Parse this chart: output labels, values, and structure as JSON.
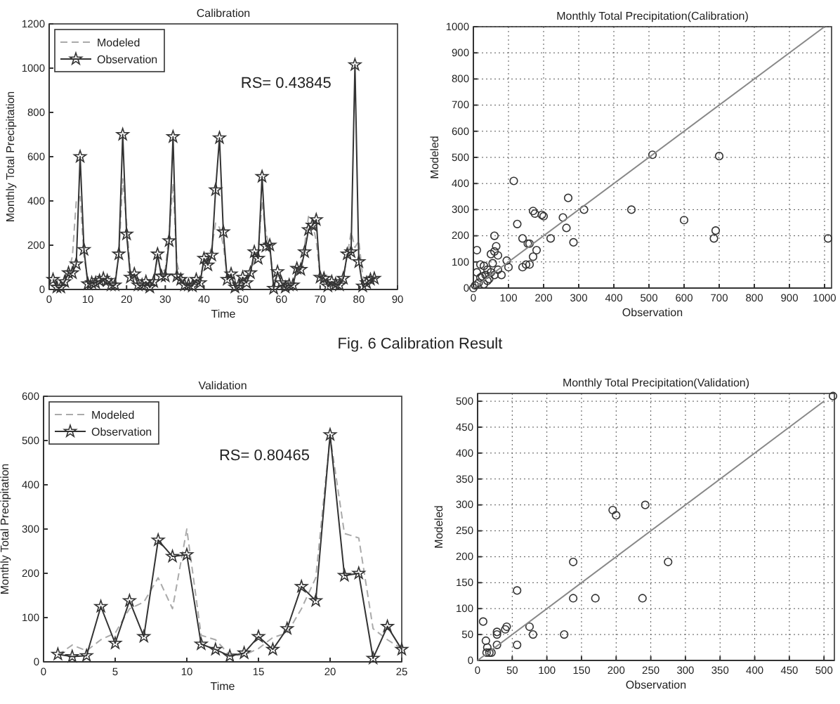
{
  "chart_data": [
    {
      "type": "line",
      "title": "Calibration",
      "xlabel": "Time",
      "ylabel": "Monthly Total Precipitation",
      "xlim": [
        0,
        90
      ],
      "ylim": [
        0,
        1200
      ],
      "xticks": [
        0,
        10,
        20,
        30,
        40,
        50,
        60,
        70,
        80,
        90
      ],
      "yticks": [
        0,
        200,
        400,
        600,
        800,
        1000,
        1200
      ],
      "legend": "top left",
      "annotations": [
        "RS= 0.43845",
        "Fig. 6 Calibration Result"
      ],
      "x": [
        1,
        2,
        3,
        4,
        5,
        6,
        7,
        8,
        9,
        10,
        11,
        12,
        13,
        14,
        15,
        16,
        17,
        18,
        19,
        20,
        21,
        22,
        23,
        24,
        25,
        26,
        27,
        28,
        29,
        30,
        31,
        32,
        33,
        34,
        35,
        36,
        37,
        38,
        39,
        40,
        41,
        42,
        43,
        44,
        45,
        46,
        47,
        48,
        49,
        50,
        51,
        52,
        53,
        54,
        55,
        56,
        57,
        58,
        59,
        60,
        61,
        62,
        63,
        64,
        65,
        66,
        67,
        68,
        69,
        70,
        71,
        72,
        73,
        74,
        75,
        76,
        77,
        78,
        79,
        80,
        81,
        82,
        83,
        84
      ],
      "series": [
        {
          "name": "Modeled",
          "color": "#aaaaaa",
          "line_style": "dashed",
          "marker": "none",
          "values": [
            50,
            30,
            20,
            40,
            80,
            150,
            400,
            420,
            150,
            40,
            30,
            30,
            40,
            45,
            40,
            30,
            40,
            150,
            500,
            300,
            80,
            50,
            30,
            25,
            30,
            20,
            40,
            140,
            80,
            90,
            250,
            480,
            120,
            50,
            30,
            25,
            25,
            40,
            60,
            120,
            150,
            190,
            300,
            280,
            200,
            60,
            50,
            20,
            30,
            50,
            60,
            80,
            130,
            170,
            400,
            260,
            180,
            40,
            60,
            40,
            20,
            20,
            30,
            80,
            100,
            200,
            330,
            300,
            220,
            60,
            50,
            30,
            30,
            30,
            25,
            60,
            150,
            260,
            190,
            220,
            60,
            30,
            40,
            60
          ]
        },
        {
          "name": "Observation",
          "color": "#333333",
          "line_style": "solid",
          "marker": "star",
          "values": [
            45,
            10,
            10,
            35,
            75,
            75,
            115,
            600,
            180,
            25,
            30,
            30,
            40,
            50,
            40,
            20,
            20,
            160,
            700,
            250,
            55,
            70,
            20,
            20,
            35,
            10,
            35,
            160,
            60,
            60,
            220,
            690,
            60,
            45,
            20,
            20,
            15,
            45,
            30,
            140,
            110,
            155,
            450,
            685,
            260,
            45,
            70,
            10,
            20,
            55,
            30,
            75,
            170,
            140,
            510,
            195,
            200,
            5,
            80,
            30,
            10,
            20,
            20,
            95,
            90,
            170,
            270,
            290,
            315,
            55,
            50,
            15,
            35,
            25,
            20,
            50,
            160,
            170,
            1015,
            125,
            15,
            30,
            45,
            50
          ]
        }
      ]
    },
    {
      "type": "scatter",
      "title": "Monthly Total Precipitation(Calibration)",
      "xlabel": "Observation",
      "ylabel": "Modeled",
      "xlim": [
        0,
        1020
      ],
      "ylim": [
        0,
        1000
      ],
      "xticks": [
        0,
        100,
        200,
        300,
        400,
        500,
        600,
        700,
        800,
        900,
        1000
      ],
      "yticks": [
        0,
        100,
        200,
        300,
        400,
        500,
        600,
        700,
        800,
        900,
        1000
      ],
      "grid": true,
      "series": [
        {
          "type": "scatter",
          "marker": "circle",
          "color": "#333333",
          "x": [
            115,
            125,
            60,
            140,
            155,
            160,
            170,
            175,
            195,
            200,
            255,
            265,
            270,
            315,
            285,
            220,
            180,
            170,
            150,
            160,
            140,
            100,
            95,
            80,
            450,
            510,
            600,
            700,
            690,
            685,
            1010,
            65,
            60,
            70,
            50,
            10,
            20,
            30,
            40,
            50,
            60,
            70,
            10,
            20,
            30,
            40,
            15,
            25,
            5,
            35,
            45,
            55,
            0
          ],
          "values": [
            410,
            245,
            200,
            190,
            170,
            170,
            295,
            285,
            280,
            275,
            270,
            230,
            345,
            300,
            175,
            190,
            145,
            120,
            90,
            90,
            80,
            80,
            105,
            50,
            300,
            510,
            260,
            505,
            220,
            190,
            190,
            160,
            140,
            125,
            130,
            145,
            90,
            85,
            70,
            60,
            50,
            70,
            60,
            40,
            15,
            28,
            20,
            45,
            10,
            50,
            35,
            95,
            0
          ]
        },
        {
          "type": "line",
          "marker": "none",
          "color": "#888888",
          "x": [
            0,
            1000
          ],
          "values": [
            0,
            1000
          ]
        }
      ]
    },
    {
      "type": "line",
      "title": "Validation",
      "xlabel": "Time",
      "ylabel": "Monthly Total Precipitation",
      "xlim": [
        0,
        25
      ],
      "ylim": [
        0,
        600
      ],
      "xticks": [
        0,
        5,
        10,
        15,
        20,
        25
      ],
      "yticks": [
        0,
        100,
        200,
        300,
        400,
        500,
        600
      ],
      "legend": "top left",
      "annotations": [
        "RS= 0.80465"
      ],
      "x": [
        1,
        2,
        3,
        4,
        5,
        6,
        7,
        8,
        9,
        10,
        11,
        12,
        13,
        14,
        15,
        16,
        17,
        18,
        19,
        20,
        21,
        22,
        23,
        24,
        25
      ],
      "series": [
        {
          "name": "Modeled",
          "color": "#aaaaaa",
          "line_style": "dashed",
          "marker": "none",
          "values": [
            15,
            38,
            25,
            50,
            65,
            120,
            135,
            190,
            120,
            300,
            60,
            50,
            15,
            15,
            30,
            55,
            65,
            120,
            190,
            510,
            290,
            280,
            75,
            50,
            30
          ]
        },
        {
          "name": "Observation",
          "color": "#333333",
          "line_style": "solid",
          "marker": "star",
          "values": [
            17,
            12,
            14,
            125,
            42,
            138,
            57,
            275,
            238,
            242,
            40,
            28,
            13,
            20,
            57,
            28,
            75,
            170,
            138,
            513,
            195,
            200,
            8,
            80,
            28
          ]
        }
      ]
    },
    {
      "type": "scatter",
      "title": "Monthly Total Precipitation(Validation)",
      "xlabel": "Observation",
      "ylabel": "Modeled",
      "xlim": [
        0,
        515
      ],
      "ylim": [
        0,
        515
      ],
      "xticks": [
        0,
        50,
        100,
        150,
        200,
        250,
        300,
        350,
        400,
        450,
        500
      ],
      "yticks": [
        0,
        50,
        100,
        150,
        200,
        250,
        300,
        350,
        400,
        450,
        500
      ],
      "grid": true,
      "series": [
        {
          "type": "scatter",
          "marker": "circle",
          "color": "#333333",
          "x": [
            17,
            12,
            14,
            125,
            42,
            138,
            57,
            275,
            238,
            242,
            40,
            28,
            13,
            20,
            57,
            28,
            75,
            170,
            138,
            513,
            195,
            200,
            8,
            80,
            28
          ],
          "values": [
            15,
            38,
            25,
            50,
            65,
            120,
            135,
            190,
            120,
            300,
            60,
            50,
            15,
            15,
            30,
            55,
            65,
            120,
            190,
            510,
            290,
            280,
            75,
            50,
            30
          ]
        },
        {
          "type": "line",
          "marker": "none",
          "color": "#888888",
          "x": [
            0,
            500
          ],
          "values": [
            0,
            500
          ]
        }
      ]
    }
  ]
}
